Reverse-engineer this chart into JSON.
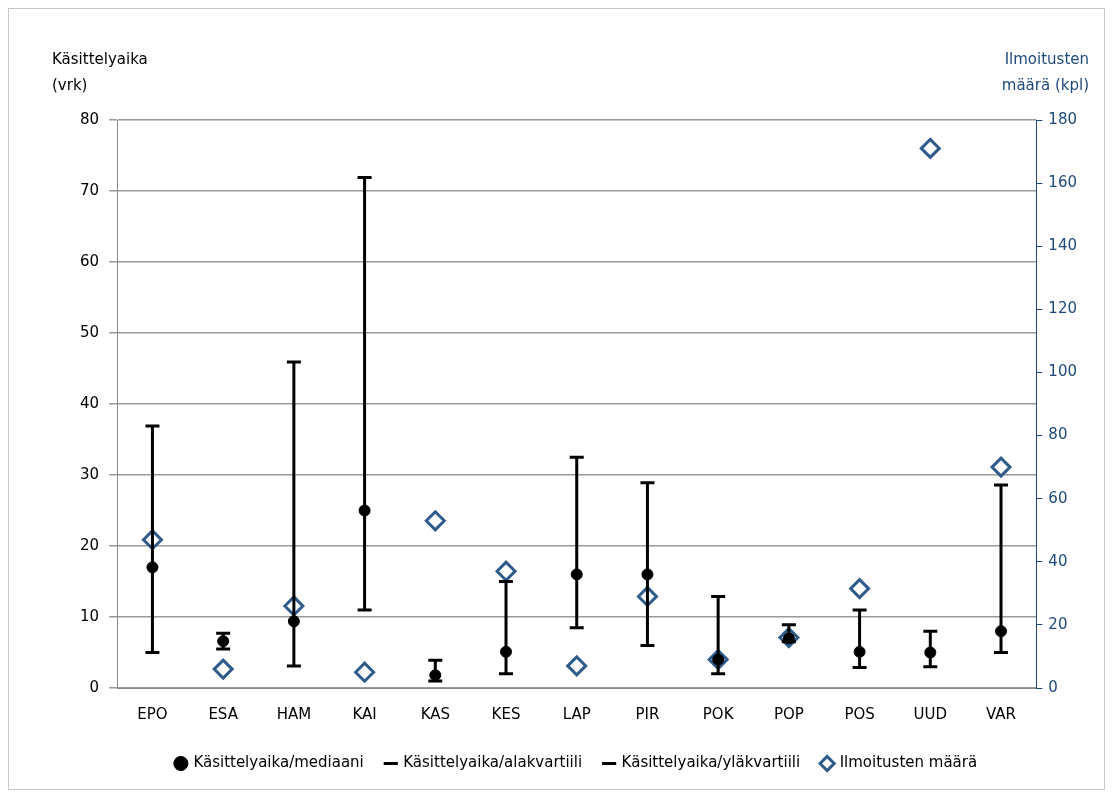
{
  "chart_data": {
    "type": "scatter",
    "ylabel": "Käsittelyaika\n(vrk)",
    "y2label": "Ilmoitusten\nmäärä (kpl)",
    "categories": [
      "EPO",
      "ESA",
      "HAM",
      "KAI",
      "KAS",
      "KES",
      "LAP",
      "PIR",
      "POK",
      "POP",
      "POS",
      "UUD",
      "VAR"
    ],
    "series": [
      {
        "name": "Käsittelyaika/mediaani",
        "color": "#000000",
        "marker": "circle",
        "values": [
          17,
          6.6,
          9.4,
          25,
          1.8,
          5.1,
          16,
          16,
          4,
          7,
          5.1,
          5,
          8
        ],
        "errors": [
          [
            5,
            36.9
          ],
          [
            5.5,
            7.7
          ],
          [
            3.1,
            45.9
          ],
          [
            11,
            71.9
          ],
          [
            1,
            3.9
          ],
          [
            2,
            15
          ],
          [
            8.5,
            32.5
          ],
          [
            6,
            28.9
          ],
          [
            2,
            12.9
          ],
          [
            6.5,
            8.9
          ],
          [
            2.9,
            11
          ],
          [
            3,
            8
          ],
          [
            5,
            28.6
          ]
        ]
      },
      {
        "name": "Käsittelyaika/alakvartiili",
        "color": "#000000",
        "marker": "none",
        "values": [
          null,
          null,
          null,
          null,
          null,
          null,
          null,
          null,
          null,
          null,
          null,
          null,
          null
        ]
      },
      {
        "name": "Käsittelyaika/yläkvartiili",
        "color": "#000000",
        "marker": "none",
        "values": [
          null,
          null,
          null,
          null,
          null,
          null,
          null,
          null,
          null,
          null,
          null,
          null,
          null
        ]
      },
      {
        "name": "Ilmoitusten määrä",
        "color": "#2e5b8c",
        "marker": "diamond",
        "axis": "y2",
        "values": [
          47,
          6,
          26,
          5,
          53,
          37,
          7,
          29,
          9,
          16,
          31.5,
          171,
          70
        ]
      }
    ],
    "ylim": [
      0,
      80
    ],
    "yticks": [
      0,
      10,
      20,
      30,
      40,
      50,
      60,
      70,
      80
    ],
    "y2lim": [
      0,
      180
    ],
    "y2ticks": [
      0,
      20,
      40,
      60,
      80,
      100,
      120,
      140,
      160,
      180
    ],
    "grid": "y",
    "legend": "bottom"
  }
}
